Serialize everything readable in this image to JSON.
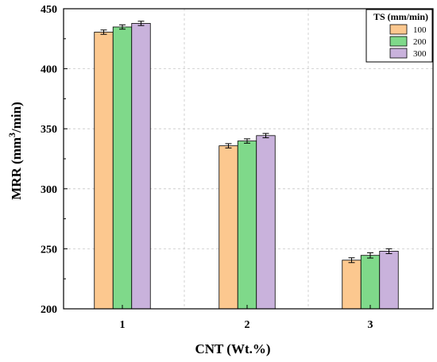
{
  "chart_data": {
    "type": "bar",
    "categories": [
      "1",
      "2",
      "3"
    ],
    "series": [
      {
        "name": "100",
        "color": "#fcc88f",
        "values": [
          430.5,
          335.8,
          240.5
        ],
        "errors": [
          1.8,
          1.8,
          2.0
        ]
      },
      {
        "name": "200",
        "color": "#7fd98a",
        "values": [
          434.8,
          339.8,
          244.5
        ],
        "errors": [
          1.8,
          1.8,
          2.2
        ]
      },
      {
        "name": "300",
        "color": "#c9b2dc",
        "values": [
          437.8,
          344.3,
          248.0
        ],
        "errors": [
          1.8,
          1.8,
          2.0
        ]
      }
    ],
    "xlabel": "CNT (Wt.%)",
    "ylabel": "MRR (mm",
    "ylabel_sup": "3",
    "ylabel_tail": "/min)",
    "ylim": [
      200,
      450
    ],
    "yticks": [
      200,
      250,
      300,
      350,
      400,
      450
    ],
    "grid": true,
    "legend": {
      "title": "TS (mm/min)",
      "placement": "top-right"
    }
  }
}
